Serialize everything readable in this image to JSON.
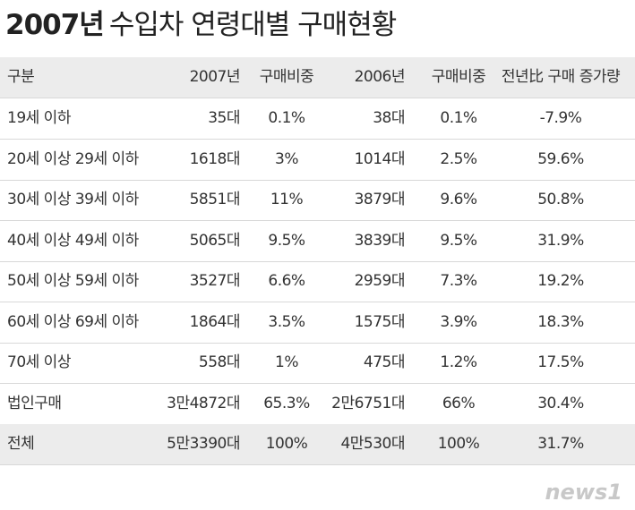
{
  "title": {
    "bold": "2007년",
    "rest": "수입차 연령대별 구매현황"
  },
  "table": {
    "header": [
      "구분",
      "2007년",
      "구매비중",
      "2006년",
      "구매비중",
      "전년比 구매 증가량"
    ],
    "rows": [
      [
        "19세 이하",
        "35대",
        "0.1%",
        "38대",
        "0.1%",
        "-7.9%"
      ],
      [
        "20세 이상 29세 이하",
        "1618대",
        "3%",
        "1014대",
        "2.5%",
        "59.6%"
      ],
      [
        "30세 이상 39세 이하",
        "5851대",
        "11%",
        "3879대",
        "9.6%",
        "50.8%"
      ],
      [
        "40세 이상 49세 이하",
        "5065대",
        "9.5%",
        "3839대",
        "9.5%",
        "31.9%"
      ],
      [
        "50세 이상 59세 이하",
        "3527대",
        "6.6%",
        "2959대",
        "7.3%",
        "19.2%"
      ],
      [
        "60세 이상 69세 이하",
        "1864대",
        "3.5%",
        "1575대",
        "3.9%",
        "18.3%"
      ],
      [
        "70세 이상",
        "558대",
        "1%",
        "475대",
        "1.2%",
        "17.5%"
      ],
      [
        "법인구매",
        "3만4872대",
        "65.3%",
        "2만6751대",
        "66%",
        "30.4%"
      ],
      [
        "전체",
        "5만3390대",
        "100%",
        "4만530대",
        "100%",
        "31.7%"
      ]
    ]
  },
  "logo": "news1"
}
